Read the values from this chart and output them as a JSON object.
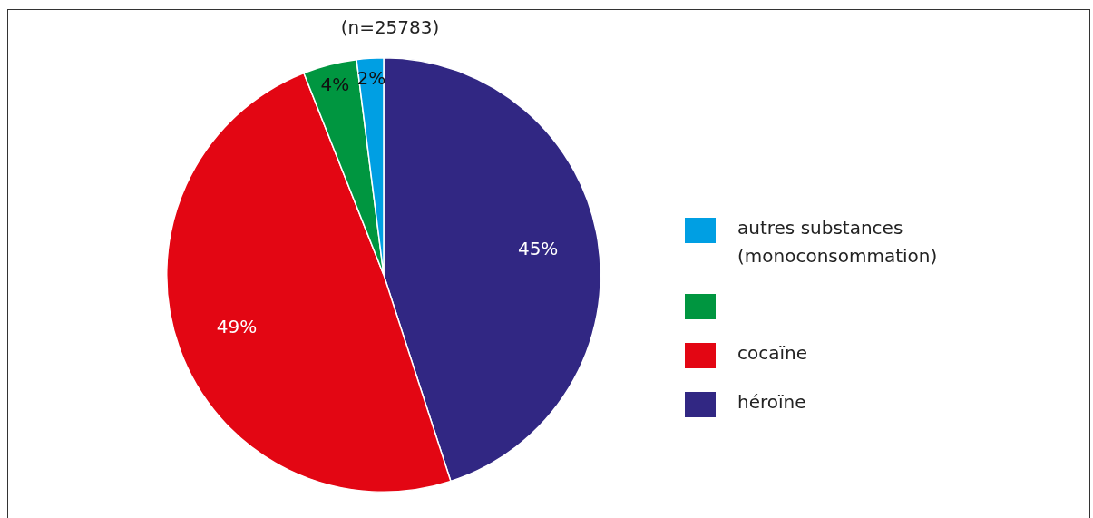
{
  "chart_data": {
    "type": "pie",
    "title": "(n=25783)",
    "categories": [
      "héroïne",
      "cocaïne",
      null,
      "autres substances (monoconsommation)"
    ],
    "values": [
      45,
      49,
      4,
      2
    ],
    "colors": [
      "#312783",
      "#e30613",
      "#009640",
      "#009fe3"
    ],
    "value_labels": [
      "45%",
      "49%",
      "4%",
      "2%"
    ],
    "legend": "right"
  }
}
